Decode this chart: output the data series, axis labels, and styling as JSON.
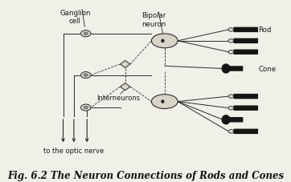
{
  "title": "Fig. 6.2 The Neuron Connections of Rods and Cones",
  "title_fontsize": 8.5,
  "bg_color": "#f0efe8",
  "labels": {
    "ganglion_cell": "Ganglion\ncell",
    "bipolar_neuron": "Bipolar\nneuron",
    "interneurons": "Interneurons",
    "optic_nerve": "to the optic nerve",
    "rod": "Rod",
    "cone": "Cone"
  },
  "lc": "#2a2a2a",
  "dark": "#1a1a1a",
  "cell_fc": "#d8d5c8",
  "cell_ec": "#2a2a2a",
  "rod_color": "#151515",
  "cone_color": "#151515",
  "dashed_color": "#333333"
}
